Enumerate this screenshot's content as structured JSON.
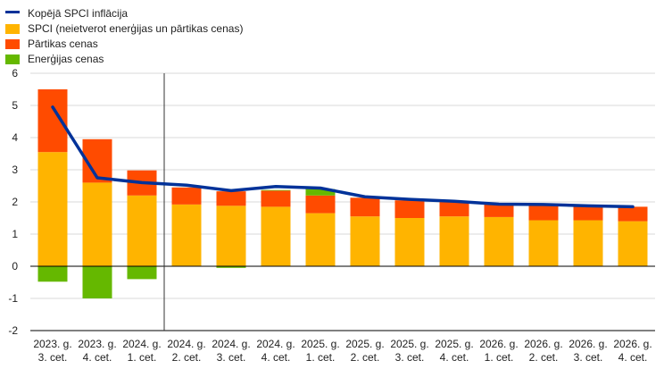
{
  "chart_data": {
    "type": "bar",
    "stacked": true,
    "title": "",
    "xlabel": "",
    "ylabel": "",
    "ylim": [
      -2,
      6
    ],
    "yticks": [
      -2,
      -1,
      0,
      1,
      2,
      3,
      4,
      5,
      6
    ],
    "grid": true,
    "legend_position": "top-left",
    "categories": [
      [
        "2023. g.",
        "3. cet."
      ],
      [
        "2023. g.",
        "4. cet."
      ],
      [
        "2024. g.",
        "1. cet."
      ],
      [
        "2024. g.",
        "2. cet."
      ],
      [
        "2024. g.",
        "3. cet."
      ],
      [
        "2024. g.",
        "4. cet."
      ],
      [
        "2025. g.",
        "1. cet."
      ],
      [
        "2025. g.",
        "2. cet."
      ],
      [
        "2025. g.",
        "3. cet."
      ],
      [
        "2025. g.",
        "4. cet."
      ],
      [
        "2026. g.",
        "1. cet."
      ],
      [
        "2026. g.",
        "2. cet."
      ],
      [
        "2026. g.",
        "3. cet."
      ],
      [
        "2026. g.",
        "4. cet."
      ]
    ],
    "series": [
      {
        "name": "SPCI (neietverot enerģijas un pārtikas cenas)",
        "kind": "bar",
        "color": "#ffb400",
        "values": [
          3.55,
          2.6,
          2.2,
          1.92,
          1.88,
          1.85,
          1.65,
          1.55,
          1.5,
          1.55,
          1.53,
          1.43,
          1.43,
          1.4
        ]
      },
      {
        "name": "Pārtikas cenas",
        "kind": "bar",
        "color": "#ff4b00",
        "values": [
          1.95,
          1.35,
          0.78,
          0.53,
          0.45,
          0.5,
          0.55,
          0.58,
          0.55,
          0.45,
          0.4,
          0.45,
          0.43,
          0.45
        ]
      },
      {
        "name": "Enerģijas cenas",
        "kind": "bar",
        "color": "#65b800",
        "values": [
          -0.48,
          -1.0,
          -0.4,
          0.0,
          -0.05,
          0.02,
          0.2,
          0.0,
          0.0,
          0.0,
          0.0,
          0.0,
          0.0,
          0.0
        ]
      },
      {
        "name": "Kopējā SPCI inflācija",
        "kind": "line",
        "color": "#003299",
        "values": [
          4.95,
          2.75,
          2.6,
          2.52,
          2.35,
          2.48,
          2.43,
          2.16,
          2.08,
          2.02,
          1.93,
          1.92,
          1.88,
          1.85
        ]
      }
    ],
    "legend_order": [
      3,
      0,
      1,
      2
    ],
    "divider_after_category": 2
  }
}
